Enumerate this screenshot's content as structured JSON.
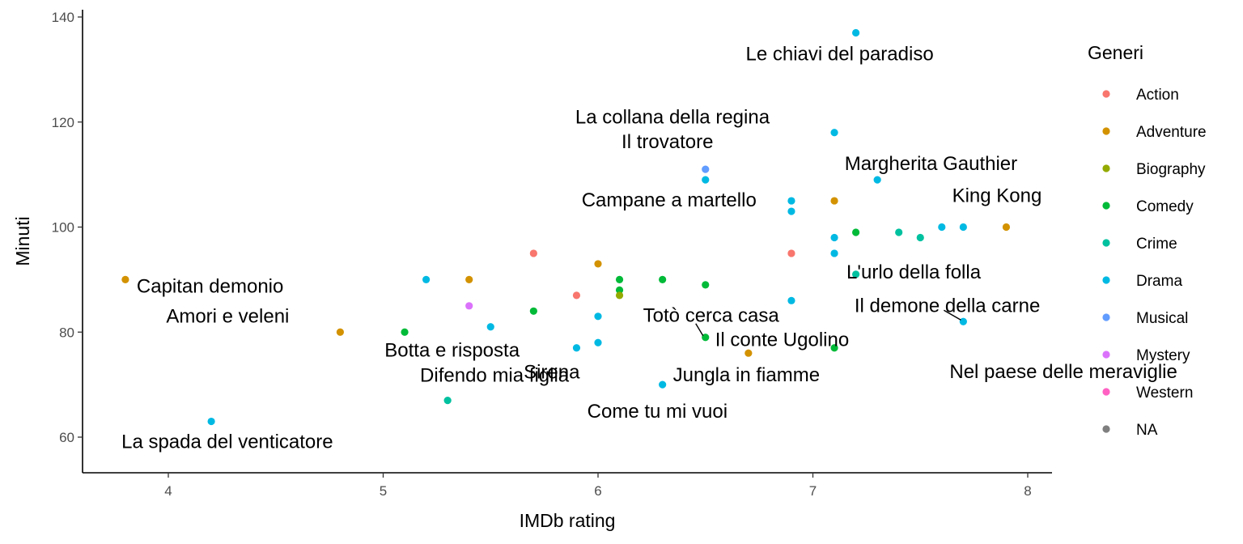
{
  "chart_data": {
    "type": "scatter",
    "xlabel": "IMDb rating",
    "ylabel": "Minuti",
    "xlim": [
      3.6,
      8.1
    ],
    "ylim": [
      53,
      141
    ],
    "xticks": [
      4,
      5,
      6,
      7,
      8
    ],
    "yticks": [
      60,
      80,
      100,
      120,
      140
    ],
    "grid": false,
    "legend": {
      "title": "Generi",
      "placement": "right",
      "entries": [
        {
          "name": "Action",
          "color": "#F8766D"
        },
        {
          "name": "Adventure",
          "color": "#D39200"
        },
        {
          "name": "Biography",
          "color": "#93AA00"
        },
        {
          "name": "Comedy",
          "color": "#00BA38"
        },
        {
          "name": "Crime",
          "color": "#00C19F"
        },
        {
          "name": "Drama",
          "color": "#00B9E3"
        },
        {
          "name": "Musical",
          "color": "#619CFF"
        },
        {
          "name": "Mystery",
          "color": "#DB72FB"
        },
        {
          "name": "Western",
          "color": "#FF61C3"
        },
        {
          "name": "NA",
          "color": "#7F7F7F"
        }
      ]
    },
    "points": [
      {
        "x": 7.2,
        "y": 137,
        "genre": "Drama"
      },
      {
        "x": 7.1,
        "y": 118,
        "genre": "Drama"
      },
      {
        "x": 6.5,
        "y": 111,
        "genre": "Musical"
      },
      {
        "x": 6.5,
        "y": 109,
        "genre": "Drama"
      },
      {
        "x": 7.3,
        "y": 109,
        "genre": "Drama"
      },
      {
        "x": 6.9,
        "y": 105,
        "genre": "Drama"
      },
      {
        "x": 7.1,
        "y": 105,
        "genre": "Adventure"
      },
      {
        "x": 6.9,
        "y": 103,
        "genre": "Drama"
      },
      {
        "x": 7.9,
        "y": 100,
        "genre": "Adventure"
      },
      {
        "x": 7.6,
        "y": 100,
        "genre": "Drama"
      },
      {
        "x": 7.7,
        "y": 100,
        "genre": "Drama"
      },
      {
        "x": 7.2,
        "y": 99,
        "genre": "Comedy"
      },
      {
        "x": 7.4,
        "y": 99,
        "genre": "Crime"
      },
      {
        "x": 7.5,
        "y": 98,
        "genre": "Crime"
      },
      {
        "x": 7.1,
        "y": 98,
        "genre": "Drama"
      },
      {
        "x": 5.7,
        "y": 95,
        "genre": "Action"
      },
      {
        "x": 6.9,
        "y": 95,
        "genre": "Action"
      },
      {
        "x": 7.1,
        "y": 95,
        "genre": "Drama"
      },
      {
        "x": 6.0,
        "y": 93,
        "genre": "Adventure"
      },
      {
        "x": 7.2,
        "y": 91,
        "genre": "Crime"
      },
      {
        "x": 3.8,
        "y": 90,
        "genre": "Adventure"
      },
      {
        "x": 5.2,
        "y": 90,
        "genre": "Drama"
      },
      {
        "x": 5.4,
        "y": 90,
        "genre": "Adventure"
      },
      {
        "x": 6.1,
        "y": 90,
        "genre": "Comedy"
      },
      {
        "x": 6.3,
        "y": 90,
        "genre": "Comedy"
      },
      {
        "x": 6.5,
        "y": 89,
        "genre": "Comedy"
      },
      {
        "x": 6.1,
        "y": 88,
        "genre": "Comedy"
      },
      {
        "x": 5.9,
        "y": 87,
        "genre": "Action"
      },
      {
        "x": 6.1,
        "y": 87,
        "genre": "Biography"
      },
      {
        "x": 6.9,
        "y": 86,
        "genre": "Drama"
      },
      {
        "x": 5.4,
        "y": 85,
        "genre": "Mystery"
      },
      {
        "x": 5.7,
        "y": 84,
        "genre": "Comedy"
      },
      {
        "x": 6.0,
        "y": 83,
        "genre": "Drama"
      },
      {
        "x": 7.7,
        "y": 82,
        "genre": "Drama"
      },
      {
        "x": 5.5,
        "y": 81,
        "genre": "Drama"
      },
      {
        "x": 4.8,
        "y": 80,
        "genre": "Adventure"
      },
      {
        "x": 5.1,
        "y": 80,
        "genre": "Comedy"
      },
      {
        "x": 6.5,
        "y": 79,
        "genre": "Comedy"
      },
      {
        "x": 6.0,
        "y": 78,
        "genre": "Drama"
      },
      {
        "x": 5.9,
        "y": 77,
        "genre": "Drama"
      },
      {
        "x": 7.1,
        "y": 77,
        "genre": "Comedy"
      },
      {
        "x": 6.7,
        "y": 76,
        "genre": "Adventure"
      },
      {
        "x": 6.3,
        "y": 70,
        "genre": "Drama"
      },
      {
        "x": 5.3,
        "y": 67,
        "genre": "Crime"
      },
      {
        "x": 4.2,
        "y": 63,
        "genre": "Drama"
      }
    ],
    "annotations": [
      {
        "text": "Le chiavi del paradiso",
        "x": 7.2,
        "y": 137
      },
      {
        "text": "La collana della regina",
        "x": 7.1,
        "y": 118
      },
      {
        "text": "Il trovatore",
        "x": 6.5,
        "y": 111
      },
      {
        "text": "Margherita Gauthier",
        "x": 7.3,
        "y": 109
      },
      {
        "text": "Campane a martello",
        "x": 6.5,
        "y": 109
      },
      {
        "text": "King Kong",
        "x": 7.7,
        "y": 100
      },
      {
        "text": "L'urlo della folla",
        "x": 7.1,
        "y": 95
      },
      {
        "text": "Capitan demonio",
        "x": 3.8,
        "y": 90
      },
      {
        "text": "Il demone della carne",
        "x": 7.7,
        "y": 82
      },
      {
        "text": "Totò cerca casa",
        "x": 6.5,
        "y": 79
      },
      {
        "text": "Amori e veleni",
        "x": 4.8,
        "y": 80
      },
      {
        "text": "Il conte Ugolino",
        "x": 6.5,
        "y": 79
      },
      {
        "text": "Botta e risposta",
        "x": 5.1,
        "y": 80
      },
      {
        "text": "Sirena",
        "x": 5.9,
        "y": 77
      },
      {
        "text": "Nel paese delle meraviglie",
        "x": 6.7,
        "y": 76
      },
      {
        "text": "Jungla in fiamme",
        "x": 6.3,
        "y": 70
      },
      {
        "text": "Difendo mia figlia",
        "x": 5.3,
        "y": 67
      },
      {
        "text": "Come tu mi vuoi",
        "x": 6.3,
        "y": 70
      },
      {
        "text": "La spada del venticatore",
        "x": 4.2,
        "y": 63
      }
    ]
  }
}
